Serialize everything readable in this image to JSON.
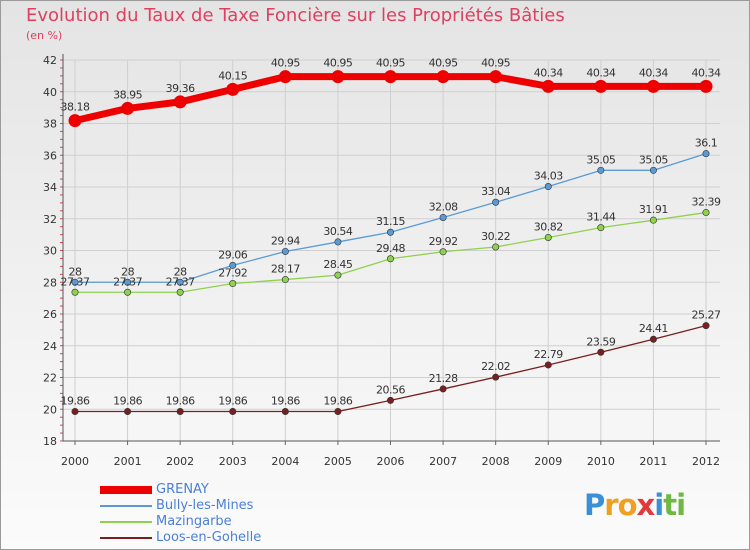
{
  "title": "Evolution du Taux de Taxe Foncière sur les Propriétés Bâties",
  "unit_label": "(en %)",
  "logo": {
    "text": "Proxiti",
    "letters": [
      {
        "ch": "P",
        "color": "#3a8fd8"
      },
      {
        "ch": "r",
        "color": "#f0a020"
      },
      {
        "ch": "o",
        "color": "#f0a020"
      },
      {
        "ch": "x",
        "color": "#e23a3a"
      },
      {
        "ch": "i",
        "color": "#3a8fd8"
      },
      {
        "ch": "t",
        "color": "#70b844"
      },
      {
        "ch": "i",
        "color": "#70b844"
      }
    ]
  },
  "chart_data": {
    "type": "line",
    "x": [
      "2000",
      "2001",
      "2002",
      "2003",
      "2004",
      "2005",
      "2006",
      "2007",
      "2008",
      "2009",
      "2010",
      "2011",
      "2012"
    ],
    "ylim": [
      18,
      42
    ],
    "yticks": [
      18,
      20,
      22,
      24,
      26,
      28,
      30,
      32,
      34,
      36,
      38,
      40,
      42
    ],
    "grid": true,
    "legend_position": "bottom-left",
    "series": [
      {
        "name": "GRENAY",
        "color": "#ee0000",
        "weight": "heavy",
        "values": [
          38.18,
          38.95,
          39.36,
          40.15,
          40.95,
          40.95,
          40.95,
          40.95,
          40.95,
          40.34,
          40.34,
          40.34,
          40.34
        ],
        "labels": [
          "38.18",
          "38.95",
          "39.36",
          "40.15",
          "40.95",
          "40.95",
          "40.95",
          "40.95",
          "40.95",
          "40.34",
          "40.34",
          "40.34",
          "40.34"
        ]
      },
      {
        "name": "Bully-les-Mines",
        "color": "#5b9bd5",
        "weight": "normal",
        "values": [
          28,
          28,
          28,
          29.06,
          29.94,
          30.54,
          31.15,
          32.08,
          33.04,
          34.03,
          35.05,
          35.05,
          36.1
        ],
        "labels": [
          "28",
          "28",
          "28",
          "29.06",
          "29.94",
          "30.54",
          "31.15",
          "32.08",
          "33.04",
          "34.03",
          "35.05",
          "35.05",
          "36.1"
        ]
      },
      {
        "name": "Mazingarbe",
        "color": "#8fd14f",
        "weight": "normal",
        "values": [
          27.37,
          27.37,
          27.37,
          27.92,
          28.17,
          28.45,
          29.48,
          29.92,
          30.22,
          30.82,
          31.44,
          31.91,
          32.39
        ],
        "labels": [
          "27.37",
          "27.37",
          "27.37",
          "27.92",
          "28.17",
          "28.45",
          "29.48",
          "29.92",
          "30.22",
          "30.82",
          "31.44",
          "31.91",
          "32.39"
        ]
      },
      {
        "name": "Loos-en-Gohelle",
        "color": "#7a1f1f",
        "weight": "normal",
        "values": [
          19.86,
          19.86,
          19.86,
          19.86,
          19.86,
          19.86,
          20.56,
          21.28,
          22.02,
          22.79,
          23.59,
          24.41,
          25.27
        ],
        "labels": [
          "19.86",
          "19.86",
          "19.86",
          "19.86",
          "19.86",
          "19.86",
          "20.56",
          "21.28",
          "22.02",
          "22.79",
          "23.59",
          "24.41",
          "25.27"
        ]
      }
    ]
  }
}
